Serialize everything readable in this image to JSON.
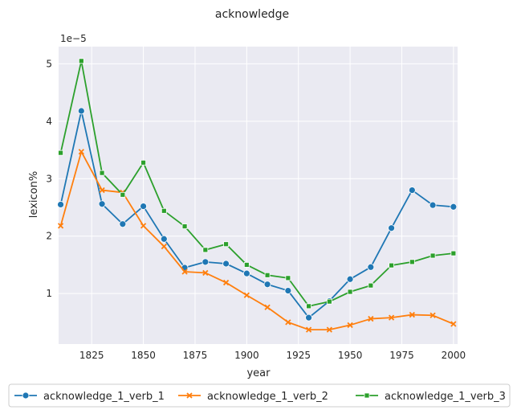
{
  "chart_data": {
    "type": "line",
    "title": "acknowledge",
    "xlabel": "year",
    "ylabel": "lexicon%",
    "offset_text": "1e−5",
    "xlim": [
      1809,
      2002
    ],
    "ylim": [
      0.12,
      5.3
    ],
    "x_ticks": [
      1825,
      1850,
      1875,
      1900,
      1925,
      1950,
      1975,
      2000
    ],
    "y_ticks": [
      1,
      2,
      3,
      4,
      5
    ],
    "grid": true,
    "legend_position": "bottom",
    "x": [
      1810,
      1820,
      1830,
      1840,
      1850,
      1860,
      1870,
      1880,
      1890,
      1900,
      1910,
      1920,
      1930,
      1940,
      1950,
      1960,
      1970,
      1980,
      1990,
      2000
    ],
    "series": [
      {
        "name": "acknowledge_1_verb_1",
        "color": "#1f77b4",
        "marker": "circle",
        "values": [
          2.55,
          4.18,
          2.56,
          2.21,
          2.52,
          1.95,
          1.45,
          1.55,
          1.52,
          1.35,
          1.16,
          1.05,
          0.58,
          0.87,
          1.25,
          1.46,
          2.14,
          2.8,
          2.54,
          2.51
        ]
      },
      {
        "name": "acknowledge_1_verb_2",
        "color": "#ff7f0e",
        "marker": "x",
        "values": [
          2.18,
          3.47,
          2.8,
          2.76,
          2.18,
          1.82,
          1.38,
          1.36,
          1.19,
          0.97,
          0.76,
          0.5,
          0.37,
          0.37,
          0.45,
          0.56,
          0.58,
          0.63,
          0.62,
          0.47
        ]
      },
      {
        "name": "acknowledge_1_verb_3",
        "color": "#2ca02c",
        "marker": "square",
        "values": [
          3.45,
          5.05,
          3.1,
          2.72,
          3.28,
          2.44,
          2.17,
          1.76,
          1.86,
          1.5,
          1.32,
          1.27,
          0.78,
          0.86,
          1.03,
          1.14,
          1.49,
          1.55,
          1.66,
          1.7
        ]
      }
    ]
  }
}
